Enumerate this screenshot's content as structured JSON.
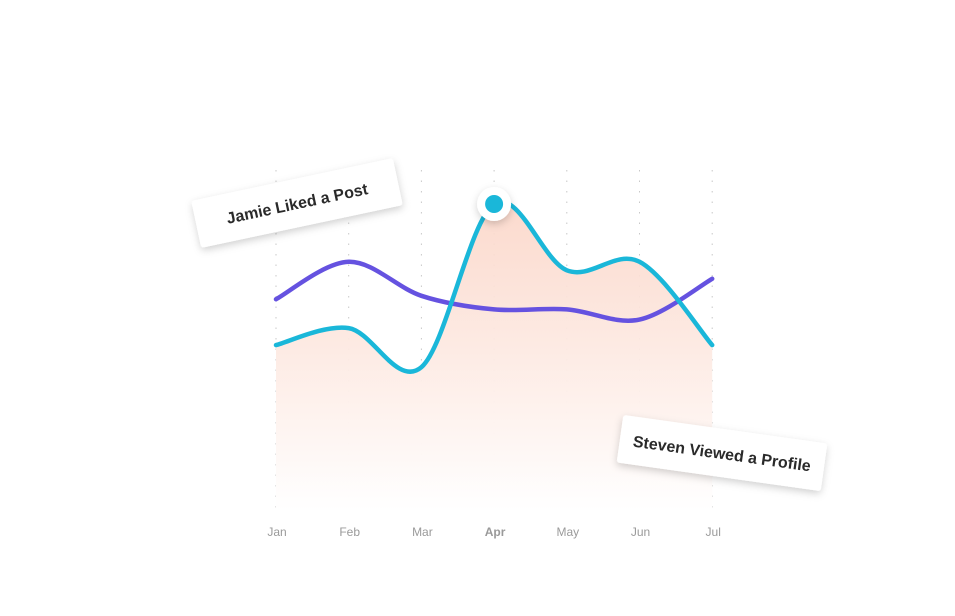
{
  "chart_data": {
    "type": "line",
    "categories": [
      "Jan",
      "Feb",
      "Mar",
      "Apr",
      "May",
      "Jun",
      "Jul"
    ],
    "series": [
      {
        "name": null,
        "color": "#1ab7d9",
        "values": [
          48.5,
          53.5,
          42,
          90,
          70.5,
          73,
          48.5
        ]
      },
      {
        "name": null,
        "color": "#6552e0",
        "values": [
          62,
          73,
          63,
          59,
          59,
          56,
          68
        ]
      }
    ],
    "ylim": [
      0,
      100
    ],
    "grid": true,
    "highlight": "Apr",
    "annotations": [
      "Jamie Liked a Post",
      "Steven Viewed a Profile"
    ]
  }
}
